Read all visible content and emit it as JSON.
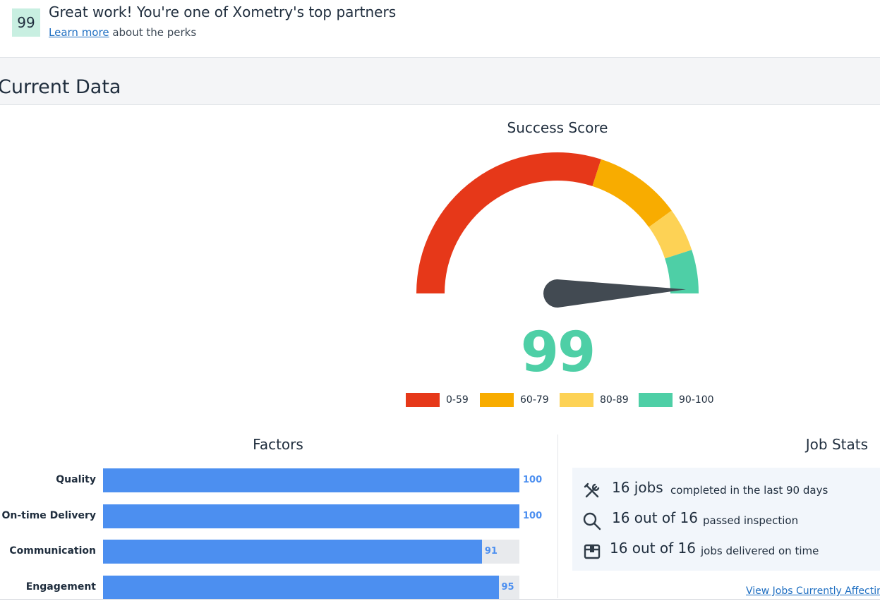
{
  "banner": {
    "score": "99",
    "title": "Great work! You're one of Xometry's top partners",
    "learn_more_link": "Learn more",
    "learn_more_rest": "about the perks"
  },
  "section": {
    "title": "Current Data"
  },
  "gauge": {
    "title": "Success Score",
    "score": 99,
    "score_text": "99",
    "min": 0,
    "max": 100,
    "ranges": [
      {
        "label": "0-59",
        "from": 0,
        "to": 60,
        "color": "#e63819"
      },
      {
        "label": "60-79",
        "from": 60,
        "to": 80,
        "color": "#f8ac00"
      },
      {
        "label": "80-89",
        "from": 80,
        "to": 90,
        "color": "#fdd255"
      },
      {
        "label": "90-100",
        "from": 90,
        "to": 100,
        "color": "#4ecfa6"
      }
    ],
    "needle_color": "#424a52"
  },
  "factors": {
    "title": "Factors",
    "max": 100,
    "bar_color": "#4c8ff0",
    "items": [
      {
        "label": "Quality",
        "value": 100,
        "value_text": "100"
      },
      {
        "label": "On-time Delivery",
        "value": 100,
        "value_text": "100"
      },
      {
        "label": "Communication",
        "value": 91,
        "value_text": "91"
      },
      {
        "label": "Engagement",
        "value": 95,
        "value_text": "95"
      }
    ]
  },
  "job_stats": {
    "title": "Job Stats",
    "rows": [
      {
        "icon": "tools-icon",
        "big": "16 jobs",
        "small": "completed in the last 90 days"
      },
      {
        "icon": "search-icon",
        "big": "16 out of 16",
        "small": "passed inspection"
      },
      {
        "icon": "package-icon",
        "big": "16 out of 16",
        "small": "jobs delivered on time"
      }
    ],
    "link": "View Jobs Currently Affecting"
  }
}
